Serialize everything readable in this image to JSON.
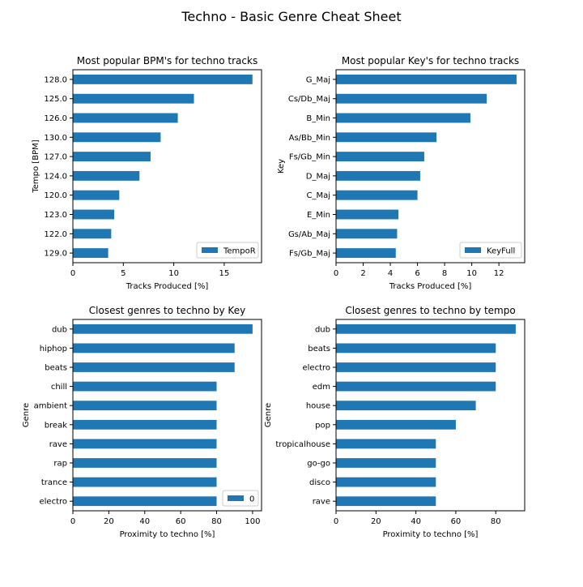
{
  "suptitle": "Techno - Basic Genre Cheat Sheet",
  "colors": {
    "bar": "#1f77b4",
    "axis": "#000000"
  },
  "chart_data": [
    {
      "type": "bar",
      "orientation": "horizontal",
      "title": "Most popular BPM's for techno tracks",
      "xlabel": "Tracks Produced [%]",
      "ylabel": "Tempo [BPM]",
      "categories": [
        "128.0",
        "125.0",
        "126.0",
        "130.0",
        "127.0",
        "124.0",
        "120.0",
        "123.0",
        "122.0",
        "129.0"
      ],
      "values": [
        17.8,
        12.0,
        10.4,
        8.7,
        7.7,
        6.6,
        4.6,
        4.1,
        3.8,
        3.5
      ],
      "xlim": [
        0,
        18.7
      ],
      "xticks": [
        0,
        5,
        10,
        15
      ],
      "legend": {
        "label": "TempoR",
        "position": "lower right"
      }
    },
    {
      "type": "bar",
      "orientation": "horizontal",
      "title": "Most popular Key's for techno tracks",
      "xlabel": "Tracks Produced [%]",
      "ylabel": "Key",
      "categories": [
        "G_Maj",
        "Cs/Db_Maj",
        "B_Min",
        "As/Bb_Min",
        "Fs/Gb_Min",
        "D_Maj",
        "C_Maj",
        "E_Min",
        "Gs/Ab_Maj",
        "Fs/Gb_Maj"
      ],
      "values": [
        13.3,
        11.1,
        9.9,
        7.4,
        6.5,
        6.2,
        6.0,
        4.6,
        4.5,
        4.4
      ],
      "xlim": [
        0,
        13.9
      ],
      "xticks": [
        0,
        2,
        4,
        6,
        8,
        10,
        12
      ],
      "legend": {
        "label": "KeyFull",
        "position": "lower right"
      }
    },
    {
      "type": "bar",
      "orientation": "horizontal",
      "title": "Closest genres to techno by Key",
      "xlabel": "Proximity to techno [%]",
      "ylabel": "Genre",
      "categories": [
        "dub",
        "hiphop",
        "beats",
        "chill",
        "ambient",
        "break",
        "rave",
        "rap",
        "trance",
        "electro"
      ],
      "values": [
        100,
        90,
        90,
        80,
        80,
        80,
        80,
        80,
        80,
        80
      ],
      "xlim": [
        0,
        105
      ],
      "xticks": [
        0,
        20,
        40,
        60,
        80,
        100
      ],
      "legend": {
        "label": "0",
        "position": "lower right"
      }
    },
    {
      "type": "bar",
      "orientation": "horizontal",
      "title": "Closest genres to techno by tempo",
      "xlabel": "Proximity to techno [%]",
      "ylabel": "Genre",
      "categories": [
        "dub",
        "beats",
        "electro",
        "edm",
        "house",
        "pop",
        "tropicalhouse",
        "go-go",
        "disco",
        "rave"
      ],
      "values": [
        90,
        80,
        80,
        80,
        70,
        60,
        50,
        50,
        50,
        50
      ],
      "xlim": [
        0,
        94.5
      ],
      "xticks": [
        0,
        20,
        40,
        60,
        80
      ],
      "legend": null
    }
  ]
}
